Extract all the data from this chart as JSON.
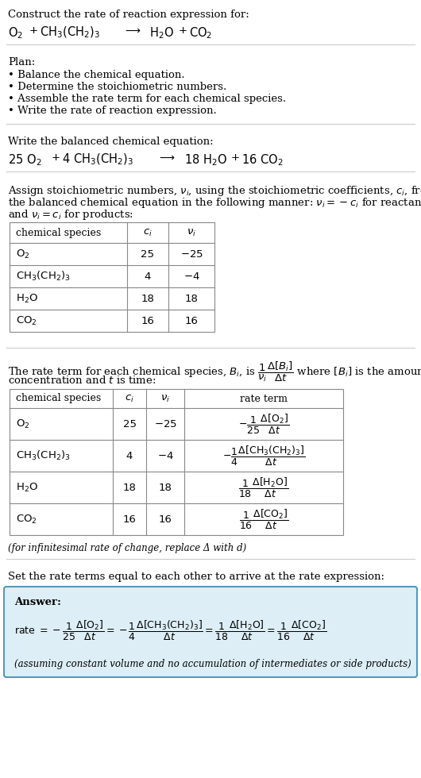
{
  "bg_color": "#ffffff",
  "text_color": "#000000",
  "answer_box_color": "#ddeef6",
  "answer_border_color": "#5599bb",
  "font_size": 9.5,
  "font_size_eq": 10.5,
  "font_size_small": 8.5,
  "sections": {
    "title": "Construct the rate of reaction expression for:",
    "plan_header": "Plan:",
    "plan_items": [
      "• Balance the chemical equation.",
      "• Determine the stoichiometric numbers.",
      "• Assemble the rate term for each chemical species.",
      "• Write the rate of reaction expression."
    ],
    "balanced_header": "Write the balanced chemical equation:",
    "stoich_line1": "Assign stoichiometric numbers, $\\nu_i$, using the stoichiometric coefficients, $c_i$, from",
    "stoich_line2": "the balanced chemical equation in the following manner: $\\nu_i = -c_i$ for reactants",
    "stoich_line3": "and $\\nu_i = c_i$ for products:",
    "rate_intro1": "The rate term for each chemical species, $B_i$, is $\\dfrac{1}{\\nu_i}\\dfrac{\\Delta[B_i]}{\\Delta t}$ where $[B_i]$ is the amount",
    "rate_intro2": "concentration and $t$ is time:",
    "infinitesimal": "(for infinitesimal rate of change, replace Δ with d)",
    "set_equal": "Set the rate terms equal to each other to arrive at the rate expression:",
    "answer_label": "Answer:",
    "final_note": "(assuming constant volume and no accumulation of intermediates or side products)"
  }
}
